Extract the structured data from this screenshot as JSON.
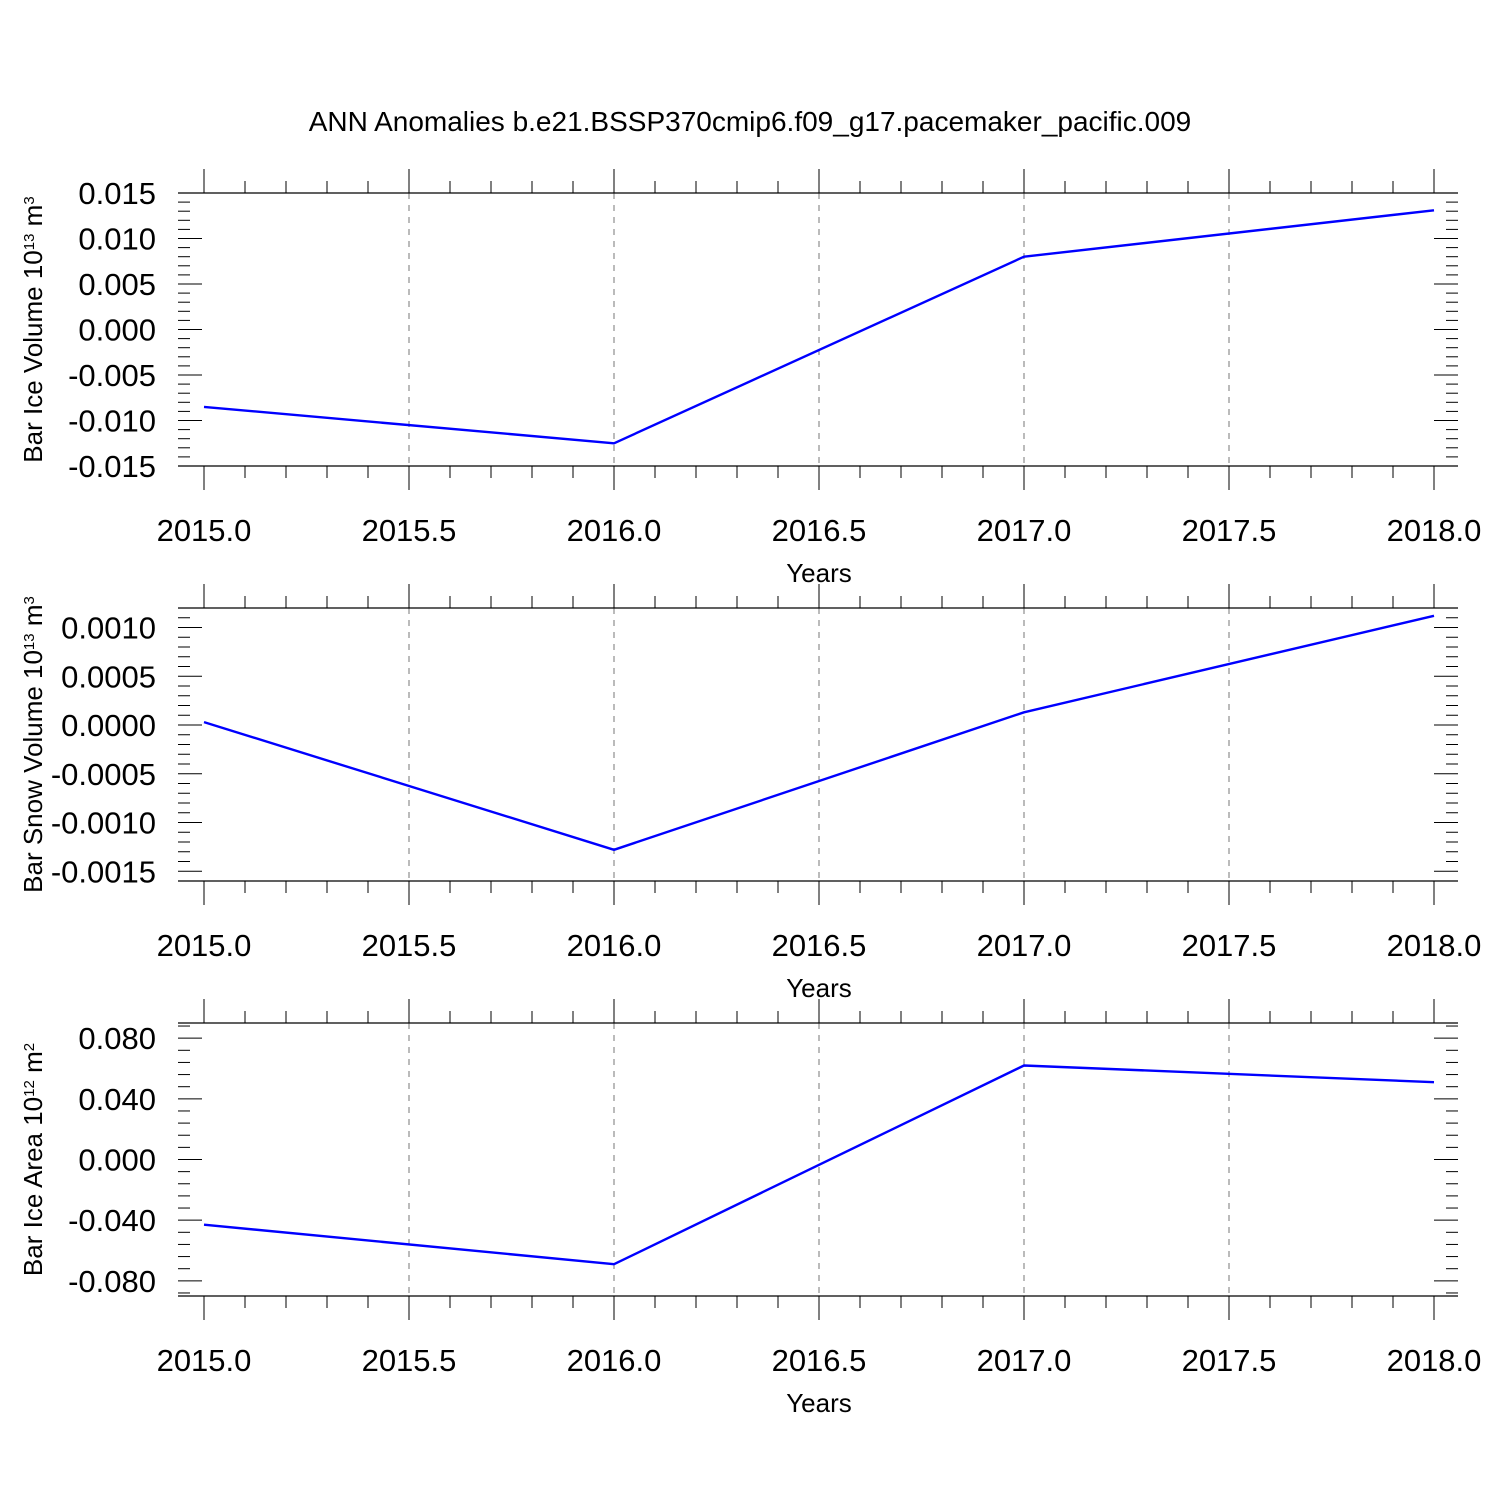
{
  "figure": {
    "title": "ANN Anomalies b.e21.BSSP370cmip6.f09_g17.pacemaker_pacific.009"
  },
  "chart_data": [
    {
      "type": "line",
      "title": "",
      "xlabel": "Years",
      "ylabel": {
        "prefix": "Bar Ice Volume 10",
        "exp": "13",
        "unit": " m",
        "unit_exp": "3"
      },
      "xlim": [
        2015.0,
        2018.0
      ],
      "ylim": [
        -0.015,
        0.015
      ],
      "x_ticks": [
        "2015.0",
        "2015.5",
        "2016.0",
        "2016.5",
        "2017.0",
        "2017.5",
        "2018.0"
      ],
      "y_ticks": [
        "0.015",
        "0.010",
        "0.005",
        "0.000",
        "-0.005",
        "-0.010",
        "-0.015"
      ],
      "grid": "vertical dashed",
      "series": [
        {
          "color": "#0000ff",
          "x": [
            2015,
            2016,
            2017,
            2018
          ],
          "y": [
            -0.0085,
            -0.0125,
            0.008,
            0.0131
          ]
        }
      ]
    },
    {
      "type": "line",
      "title": "",
      "xlabel": "Years",
      "ylabel": {
        "prefix": "Bar Snow Volume 10",
        "exp": "13",
        "unit": " m",
        "unit_exp": "3"
      },
      "xlim": [
        2015.0,
        2018.0
      ],
      "ylim": [
        -0.0016,
        0.0012
      ],
      "x_ticks": [
        "2015.0",
        "2015.5",
        "2016.0",
        "2016.5",
        "2017.0",
        "2017.5",
        "2018.0"
      ],
      "y_ticks": [
        "0.0010",
        "0.0005",
        "0.0000",
        "-0.0005",
        "-0.0010",
        "-0.0015"
      ],
      "grid": "vertical dashed",
      "series": [
        {
          "color": "#0000ff",
          "x": [
            2015,
            2016,
            2017,
            2018
          ],
          "y": [
            3e-05,
            -0.00128,
            0.00013,
            0.00112
          ]
        }
      ]
    },
    {
      "type": "line",
      "title": "",
      "xlabel": "Years",
      "ylabel": {
        "prefix": "Bar Ice Area 10",
        "exp": "12",
        "unit": " m",
        "unit_exp": "2"
      },
      "xlim": [
        2015.0,
        2018.0
      ],
      "ylim": [
        -0.09,
        0.09
      ],
      "x_ticks": [
        "2015.0",
        "2015.5",
        "2016.0",
        "2016.5",
        "2017.0",
        "2017.5",
        "2018.0"
      ],
      "y_ticks": [
        "0.080",
        "0.040",
        "0.000",
        "-0.040",
        "-0.080"
      ],
      "grid": "vertical dashed",
      "series": [
        {
          "color": "#0000ff",
          "x": [
            2015,
            2016,
            2017,
            2018
          ],
          "y": [
            -0.043,
            -0.069,
            0.062,
            0.051
          ]
        }
      ]
    }
  ]
}
